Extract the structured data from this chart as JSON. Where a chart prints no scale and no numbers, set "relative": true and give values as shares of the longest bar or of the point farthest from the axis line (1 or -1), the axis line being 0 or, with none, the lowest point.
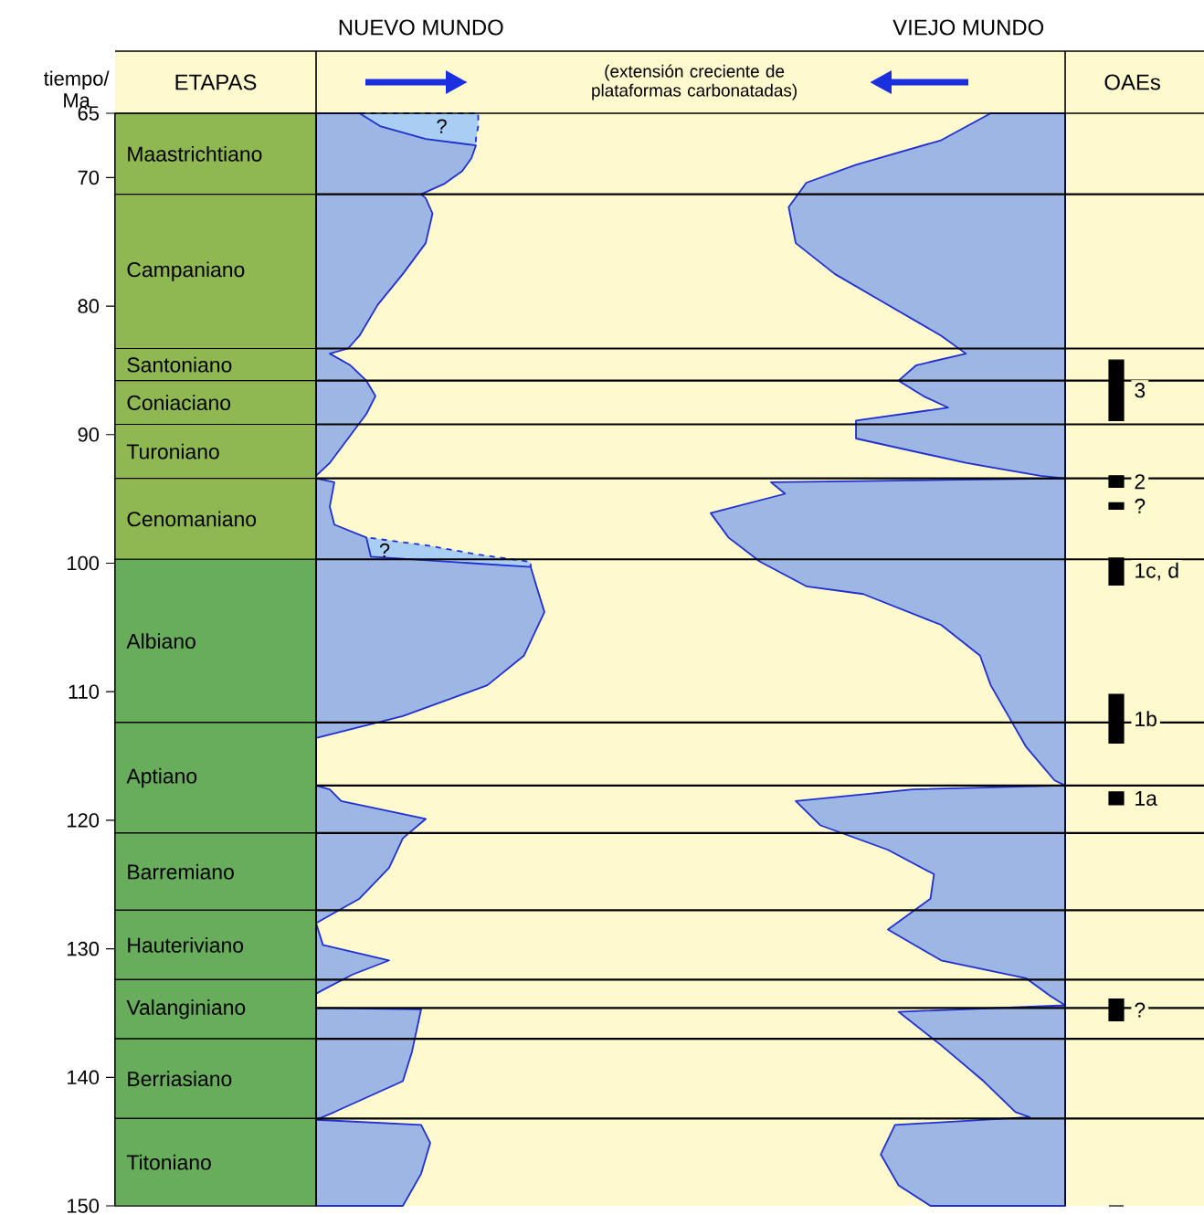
{
  "chart_data": [
    {
      "type": "bar",
      "title": "ETAPAS",
      "ylabel": "tiempo/ Ma",
      "categories": [
        null
      ],
      "ylim": [
        150,
        65
      ],
      "yticks": [
        65,
        70,
        80,
        90,
        100,
        110,
        120,
        130,
        140,
        150
      ],
      "tick_labels": "y",
      "series": [
        {
          "name": "Maastrichtiano",
          "color": "#8fb853",
          "base": [
            65
          ],
          "values": [
            6.3
          ]
        },
        {
          "name": "Campaniano",
          "color": "#8fb853",
          "base": [
            71.3
          ],
          "values": [
            12
          ]
        },
        {
          "name": "Santoniano",
          "color": "#8fb853",
          "base": [
            83.3
          ],
          "values": [
            2.5
          ]
        },
        {
          "name": "Coniaciano",
          "color": "#8fb853",
          "base": [
            85.8
          ],
          "values": [
            3.4
          ]
        },
        {
          "name": "Turoniano",
          "color": "#8fb853",
          "base": [
            89.2
          ],
          "values": [
            4.2
          ]
        },
        {
          "name": "Cenomaniano",
          "color": "#8fb853",
          "base": [
            93.4
          ],
          "values": [
            6.3
          ]
        },
        {
          "name": "Albiano",
          "color": "#68ad5b",
          "base": [
            99.7
          ],
          "values": [
            12.7
          ]
        },
        {
          "name": "Aptiano",
          "color": "#68ad5b",
          "base": [
            112.4
          ],
          "values": [
            8.6
          ]
        },
        {
          "name": "Barremiano",
          "color": "#68ad5b",
          "base": [
            121.0
          ],
          "values": [
            6
          ]
        },
        {
          "name": "Hauteriviano",
          "color": "#68ad5b",
          "base": [
            127.0
          ],
          "values": [
            5.4
          ]
        },
        {
          "name": "Valanginiano",
          "color": "#68ad5b",
          "base": [
            132.4
          ],
          "values": [
            4.6
          ]
        },
        {
          "name": "Berriasiano",
          "color": "#68ad5b",
          "base": [
            137.0
          ],
          "values": [
            6.2
          ]
        },
        {
          "name": "Titoniano",
          "color": "#68ad5b",
          "base": [
            143.2
          ],
          "values": [
            6.8
          ]
        }
      ]
    },
    {
      "type": "area",
      "title": "NUEVO MUNDO",
      "relative": true,
      "orientation": "horizontal",
      "ylim": [
        150,
        65
      ],
      "tick_labels": false,
      "annotations": [
        "(extensión creciente de plataformas carbonatadas)",
        "?",
        "?"
      ],
      "ref_lines": [
        {
          "axis": "y",
          "value": 71.3
        },
        {
          "axis": "y",
          "value": 83.3
        },
        {
          "axis": "y",
          "value": 85.8
        },
        {
          "axis": "y",
          "value": 89.2
        },
        {
          "axis": "y",
          "value": 93.4
        },
        {
          "axis": "y",
          "value": 99.7
        },
        {
          "axis": "y",
          "value": 112.4
        },
        {
          "axis": "y",
          "value": 117.3
        },
        {
          "axis": "y",
          "value": 121.0
        },
        {
          "axis": "y",
          "value": 127.0
        },
        {
          "axis": "y",
          "value": 132.4
        },
        {
          "axis": "y",
          "value": 134.6
        },
        {
          "axis": "y",
          "value": 137.0
        },
        {
          "axis": "y",
          "value": 143.2
        }
      ],
      "series": [
        {
          "color": "#a9cdf3",
          "line_style": "dashed",
          "x": [
            65,
            66,
            67,
            67.5
          ],
          "values": [
            0.71,
            0.71,
            0.7,
            0.7
          ]
        },
        {
          "color": "#a9cdf3",
          "line_style": "dashed",
          "x": [
            98.0,
            98.6,
            99.3,
            99.9,
            100.3
          ],
          "values": [
            0.22,
            0.48,
            0.7,
            0.94,
            0.94
          ]
        },
        {
          "color": "#9db6e3",
          "x": [
            65,
            66,
            67,
            67.5,
            68.5,
            69.5,
            70.5,
            71.3,
            71.6,
            72.8,
            75.1,
            77.5,
            79.9,
            82.3,
            83.3,
            83.7,
            84.6,
            85.8,
            87.0,
            88.4,
            90.3,
            92.2,
            93.2,
            93.4,
            93.7,
            95.6,
            97.0,
            98.0,
            99.5,
            100.3,
            101.5,
            103.8,
            107.2,
            109.5,
            111.9,
            113.6,
            117.3,
            117.6,
            118.5,
            119.9,
            121.4,
            123.7,
            126.1,
            128.0,
            129.7,
            130.9,
            132.0,
            133.2,
            133.5,
            134.6,
            134.7,
            138.0,
            140.3,
            142.7,
            143.3,
            143.7,
            145.1,
            147.5,
            150
          ],
          "values": [
            0.19,
            0.28,
            0.48,
            0.7,
            0.68,
            0.64,
            0.56,
            0.46,
            0.48,
            0.51,
            0.48,
            0.38,
            0.27,
            0.19,
            0.14,
            0.06,
            0.15,
            0.22,
            0.26,
            0.22,
            0.14,
            0.06,
            0,
            0,
            0.08,
            0.06,
            0.08,
            0.22,
            0.24,
            0.94,
            0.96,
            1,
            0.91,
            0.75,
            0.38,
            0,
            0,
            0.06,
            0.11,
            0.48,
            0.38,
            0.32,
            0.19,
            0,
            0.03,
            0.32,
            0.16,
            0.03,
            0,
            0,
            0.46,
            0.42,
            0.38,
            0.08,
            0,
            0.46,
            0.5,
            0.46,
            0.38
          ]
        }
      ]
    },
    {
      "type": "area",
      "title": "VIEJO MUNDO",
      "relative": true,
      "orientation": "horizontal",
      "ylim": [
        150,
        65
      ],
      "tick_labels": false,
      "series": [
        {
          "color": "#9db6e3",
          "x": [
            65,
            67.1,
            69.0,
            70.4,
            72.3,
            75.1,
            77.5,
            79.9,
            82.3,
            83.7,
            84.6,
            85.8,
            87.0,
            87.9,
            88.9,
            90.3,
            92.2,
            93.2,
            93.4,
            93.7,
            94.6,
            96.1,
            98.0,
            99.9,
            101.8,
            102.4,
            104.8,
            107.2,
            109.5,
            111.9,
            114.3,
            116.9,
            117.3,
            117.6,
            118.5,
            120.4,
            122.3,
            124.2,
            126.1,
            128.5,
            130.9,
            132.3,
            133.7,
            134.4,
            134.9,
            137.5,
            140.3,
            142.7,
            143.1,
            143.7,
            146.0,
            148.4,
            150
          ],
          "values": [
            -0.21,
            -0.35,
            -0.59,
            -0.73,
            -0.78,
            -0.76,
            -0.65,
            -0.5,
            -0.35,
            -0.28,
            -0.42,
            -0.47,
            -0.4,
            -0.33,
            -0.59,
            -0.59,
            -0.28,
            -0.07,
            0,
            -0.83,
            -0.79,
            -1,
            -0.95,
            -0.86,
            -0.73,
            -0.57,
            -0.35,
            -0.24,
            -0.21,
            -0.16,
            -0.11,
            -0.03,
            0,
            -0.43,
            -0.76,
            -0.69,
            -0.5,
            -0.37,
            -0.38,
            -0.5,
            -0.35,
            -0.11,
            -0.04,
            0,
            -0.47,
            -0.35,
            -0.23,
            -0.14,
            -0.1,
            -0.48,
            -0.52,
            -0.47,
            -0.38
          ]
        }
      ]
    },
    {
      "type": "bar",
      "title": "OAEs",
      "categories": [
        null
      ],
      "ylim": [
        150,
        65
      ],
      "tick_labels": false,
      "series": [
        {
          "name": "3",
          "color": "#000000",
          "base": [
            84.2
          ],
          "values": [
            4.7
          ]
        },
        {
          "name": "2",
          "color": "#000000",
          "base": [
            93.2
          ],
          "values": [
            0.9
          ]
        },
        {
          "name": "?",
          "color": "#000000",
          "base": [
            95.3
          ],
          "values": [
            0.5
          ]
        },
        {
          "name": "1c, d",
          "color": "#000000",
          "base": [
            99.6
          ],
          "values": [
            2.1
          ]
        },
        {
          "name": "1b",
          "color": "#000000",
          "base": [
            110.2
          ],
          "values": [
            3.8
          ]
        },
        {
          "name": "1a",
          "color": "#000000",
          "base": [
            117.8
          ],
          "values": [
            1.0
          ]
        },
        {
          "name": "?",
          "color": "#000000",
          "base": [
            133.9
          ],
          "values": [
            1.7
          ]
        }
      ]
    }
  ]
}
